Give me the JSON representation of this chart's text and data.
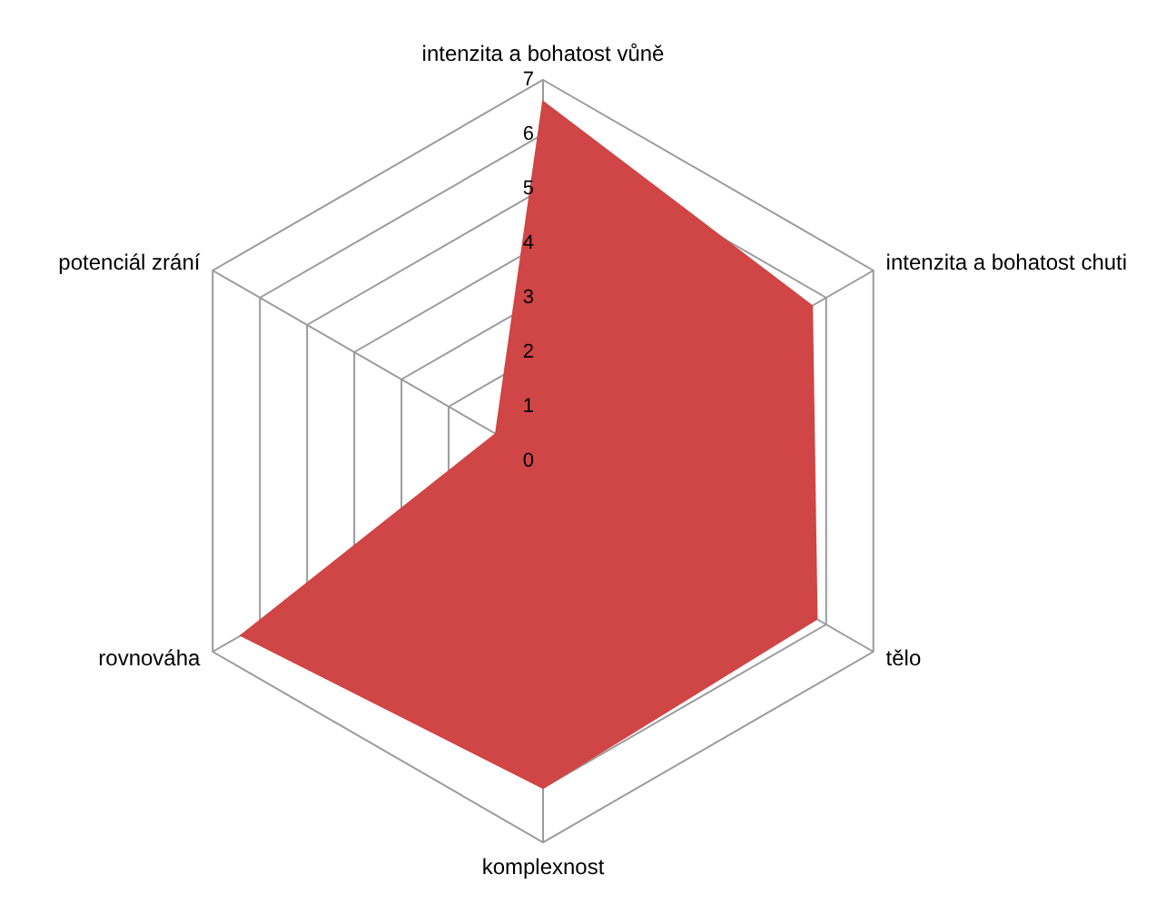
{
  "chart_data": {
    "type": "radar",
    "categories": [
      "intenzita a bohatost vůně",
      "intenzita a bohatost chuti",
      "tělo",
      "komplexnost",
      "rovnováha",
      "potenciál zrání"
    ],
    "series": [
      {
        "color": "#d04545",
        "values": [
          6.6,
          5.7,
          5.8,
          6.0,
          6.4,
          1.0
        ]
      }
    ],
    "ylim": [
      0,
      7
    ],
    "yticks": [
      0,
      1,
      2,
      3,
      4,
      5,
      6,
      7
    ],
    "grid": true,
    "legend": false,
    "marker": "none"
  }
}
